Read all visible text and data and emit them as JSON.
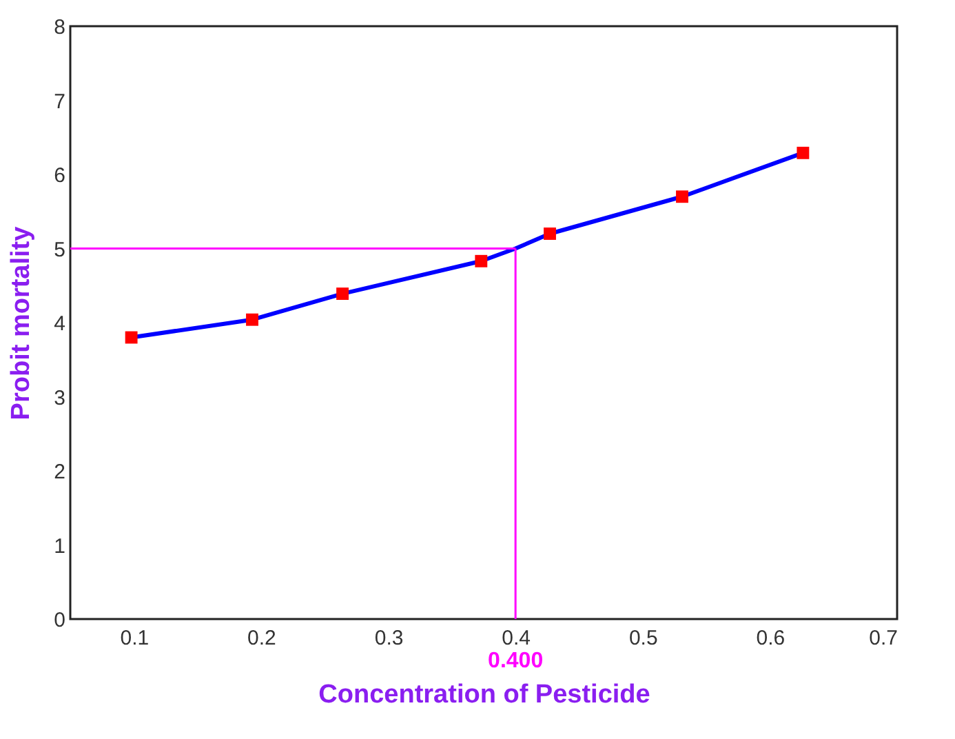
{
  "chart_data": {
    "type": "line",
    "xlabel": "Concentration of Pesticide",
    "ylabel": "Probit mortality",
    "xlim": [
      0.05,
      0.7
    ],
    "xticks": [
      0.1,
      0.2,
      0.3,
      0.4,
      0.5,
      0.6,
      0.7
    ],
    "ylim": [
      0,
      8
    ],
    "yticks": [
      0,
      1,
      2,
      3,
      4,
      5,
      6,
      7,
      8
    ],
    "grid": false,
    "series": [
      {
        "color": "#0000ff",
        "marker": "none",
        "x": [
          0.098,
          0.193,
          0.264,
          0.373,
          0.4,
          0.427,
          0.531,
          0.626
        ],
        "values": [
          3.8,
          4.04,
          4.39,
          4.83,
          5.0,
          5.2,
          5.7,
          6.29
        ]
      },
      {
        "type": "scatter",
        "color": "#ff0000",
        "marker": "square",
        "x": [
          0.098,
          0.193,
          0.264,
          0.373,
          0.427,
          0.531,
          0.626
        ],
        "values": [
          3.8,
          4.04,
          4.39,
          4.83,
          5.2,
          5.7,
          6.29
        ]
      }
    ],
    "ref_lines": [
      {
        "axis": "y",
        "value": 5,
        "color": "#ff00ff"
      },
      {
        "axis": "x",
        "value": 0.4,
        "label": "0.400",
        "color": "#ff00ff"
      }
    ]
  }
}
